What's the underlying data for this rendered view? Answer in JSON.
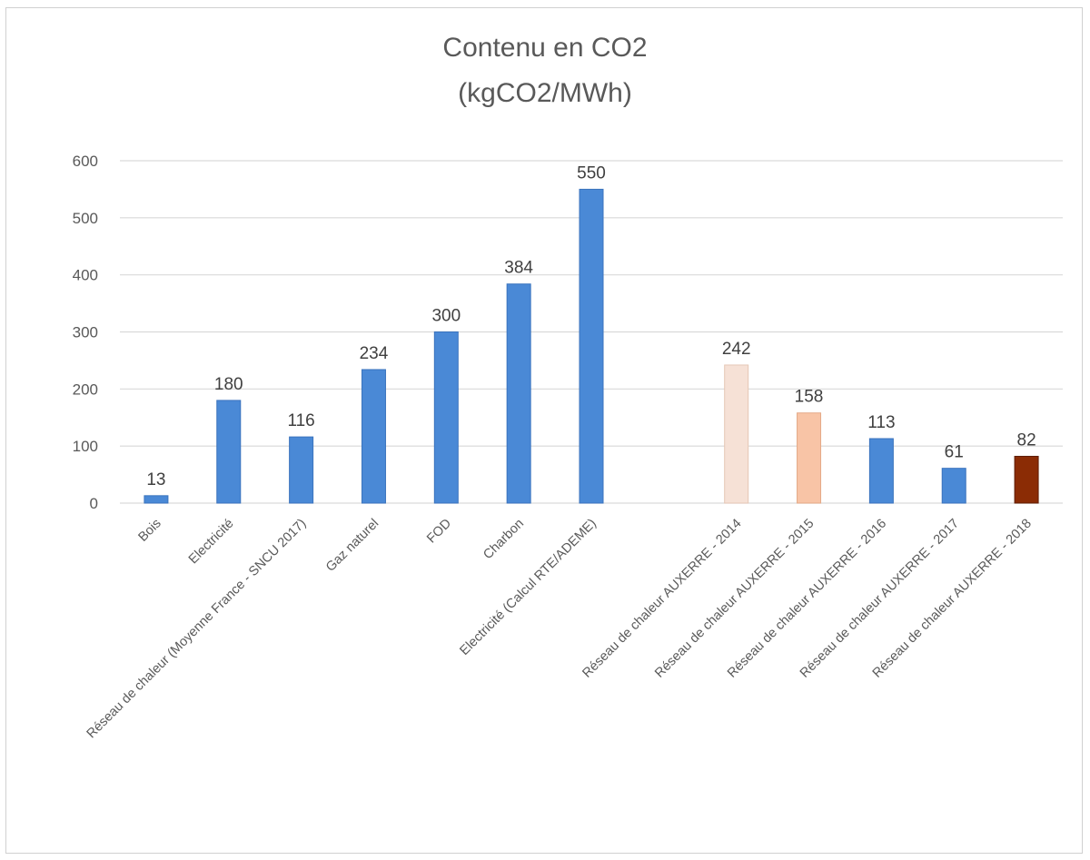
{
  "chart_data": {
    "type": "bar",
    "title": "Contenu en CO2",
    "subtitle": "(kgCO2/MWh)",
    "xlabel": "",
    "ylabel": "",
    "ylim": [
      0,
      600
    ],
    "yticks": [
      "0",
      "100",
      "200",
      "300",
      "400",
      "500",
      "600"
    ],
    "grid": true,
    "legend": "none",
    "categories": [
      "Bois",
      "Electricité",
      "Réseau de chaleur (Moyenne France - SNCU 2017)",
      "Gaz naturel",
      "FOD",
      "Charbon",
      "Electricité (Calcul RTE/ADEME)",
      "",
      "Réseau de chaleur AUXERRE - 2014",
      "Réseau de chaleur AUXERRE - 2015",
      "Réseau de chaleur AUXERRE - 2016",
      "Réseau de chaleur AUXERRE - 2017",
      "Réseau de chaleur AUXERRE - 2018"
    ],
    "values": [
      13,
      180,
      116,
      234,
      300,
      384,
      550,
      null,
      242,
      158,
      113,
      61,
      82
    ],
    "data_labels": [
      "13",
      "180",
      "116",
      "234",
      "300",
      "384",
      "550",
      "",
      "242",
      "158",
      "113",
      "61",
      "82"
    ],
    "bar_colors": [
      "#4a89d6",
      "#4a89d6",
      "#4a89d6",
      "#4a89d6",
      "#4a89d6",
      "#4a89d6",
      "#4a89d6",
      "#4a89d6",
      "#f6e1d6",
      "#f8c4a6",
      "#4a89d6",
      "#4a89d6",
      "#8b2c05"
    ],
    "bar_edge_colors": [
      "#3a73bd",
      "#3a73bd",
      "#3a73bd",
      "#3a73bd",
      "#3a73bd",
      "#3a73bd",
      "#3a73bd",
      "#3a73bd",
      "#e6c7b5",
      "#e4a987",
      "#3a73bd",
      "#3a73bd",
      "#5e1c02"
    ],
    "colors": {
      "gridline": "#d9d9d9",
      "tick_text": "#595959",
      "title_text": "#595959",
      "label_text": "#404040"
    }
  }
}
